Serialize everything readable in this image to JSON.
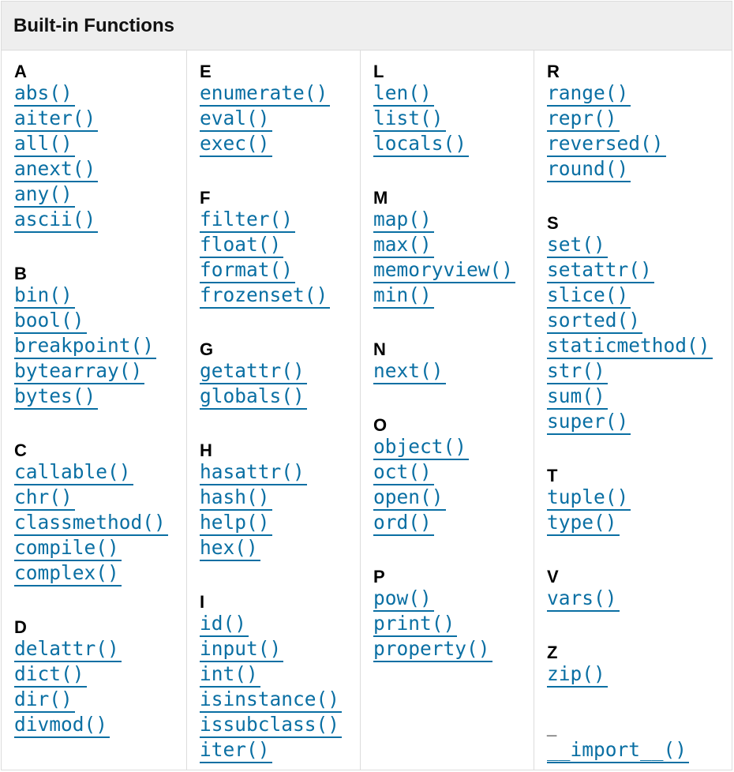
{
  "title": "Built-in Functions",
  "link_color": "#0a6fa3",
  "columns": [
    [
      {
        "letter": "A",
        "items": [
          "abs()",
          "aiter()",
          "all()",
          "anext()",
          "any()",
          "ascii()"
        ]
      },
      {
        "letter": "B",
        "items": [
          "bin()",
          "bool()",
          "breakpoint()",
          "bytearray()",
          "bytes()"
        ]
      },
      {
        "letter": "C",
        "items": [
          "callable()",
          "chr()",
          "classmethod()",
          "compile()",
          "complex()"
        ]
      },
      {
        "letter": "D",
        "items": [
          "delattr()",
          "dict()",
          "dir()",
          "divmod()"
        ]
      }
    ],
    [
      {
        "letter": "E",
        "items": [
          "enumerate()",
          "eval()",
          "exec()"
        ]
      },
      {
        "letter": "F",
        "items": [
          "filter()",
          "float()",
          "format()",
          "frozenset()"
        ]
      },
      {
        "letter": "G",
        "items": [
          "getattr()",
          "globals()"
        ]
      },
      {
        "letter": "H",
        "items": [
          "hasattr()",
          "hash()",
          "help()",
          "hex()"
        ]
      },
      {
        "letter": "I",
        "items": [
          "id()",
          "input()",
          "int()",
          "isinstance()",
          "issubclass()",
          "iter()"
        ]
      }
    ],
    [
      {
        "letter": "L",
        "items": [
          "len()",
          "list()",
          "locals()"
        ]
      },
      {
        "letter": "M",
        "items": [
          "map()",
          "max()",
          "memoryview()",
          "min()"
        ]
      },
      {
        "letter": "N",
        "items": [
          "next()"
        ]
      },
      {
        "letter": "O",
        "items": [
          "object()",
          "oct()",
          "open()",
          "ord()"
        ]
      },
      {
        "letter": "P",
        "items": [
          "pow()",
          "print()",
          "property()"
        ]
      }
    ],
    [
      {
        "letter": "R",
        "items": [
          "range()",
          "repr()",
          "reversed()",
          "round()"
        ]
      },
      {
        "letter": "S",
        "items": [
          "set()",
          "setattr()",
          "slice()",
          "sorted()",
          "staticmethod()",
          "str()",
          "sum()",
          "super()"
        ]
      },
      {
        "letter": "T",
        "items": [
          "tuple()",
          "type()"
        ]
      },
      {
        "letter": "V",
        "items": [
          "vars()"
        ]
      },
      {
        "letter": "Z",
        "items": [
          "zip()"
        ]
      },
      {
        "letter": "_",
        "items": [
          "__import__()"
        ]
      }
    ]
  ]
}
